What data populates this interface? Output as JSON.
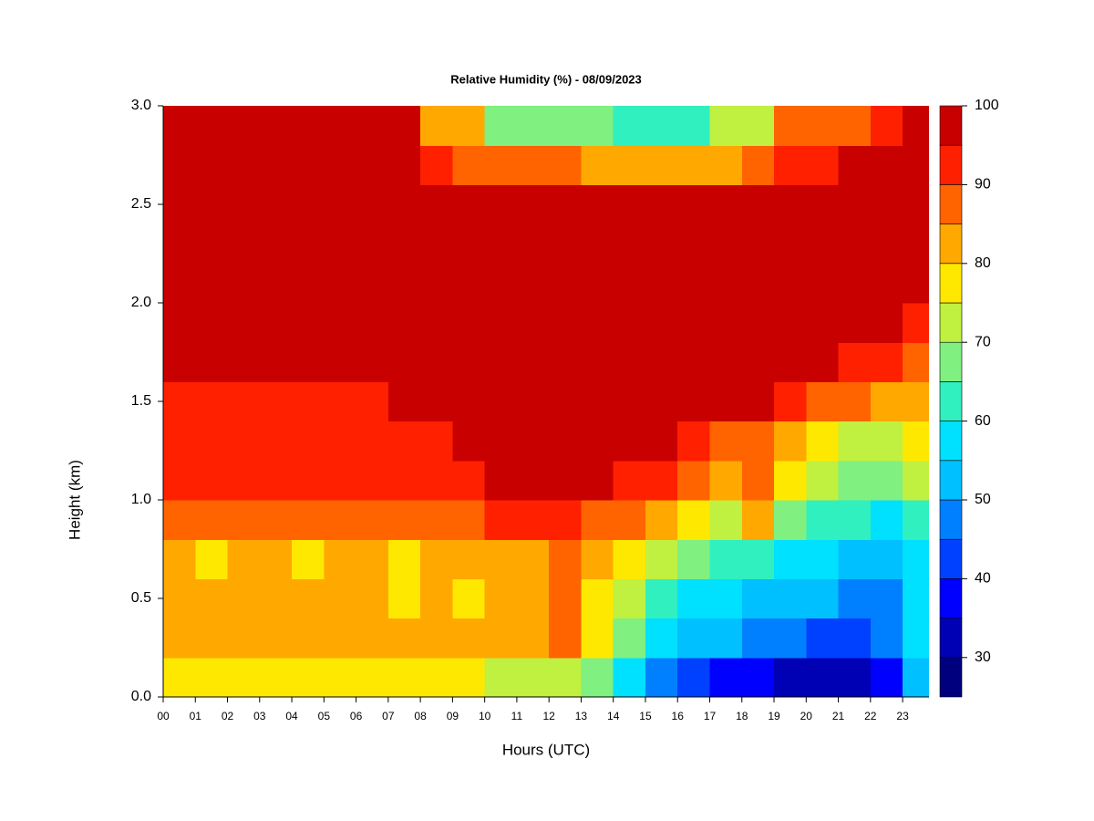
{
  "chart_data": {
    "type": "heatmap",
    "title": "Relative Humidity (%) - 08/09/2023",
    "x_label": "Hours (UTC)",
    "y_label": "Height (km)",
    "xlim": [
      0,
      23.82
    ],
    "ylim": [
      0,
      3
    ],
    "xticks": [
      {
        "value": 0,
        "label": "00"
      },
      {
        "value": 1,
        "label": "01"
      },
      {
        "value": 2,
        "label": "02"
      },
      {
        "value": 3,
        "label": "03"
      },
      {
        "value": 4,
        "label": "04"
      },
      {
        "value": 5,
        "label": "05"
      },
      {
        "value": 6,
        "label": "06"
      },
      {
        "value": 7,
        "label": "07"
      },
      {
        "value": 8,
        "label": "08"
      },
      {
        "value": 9,
        "label": "09"
      },
      10,
      11,
      12,
      13,
      14,
      15,
      16,
      17,
      18,
      19,
      20,
      21,
      22,
      23
    ],
    "yticks": [
      {
        "value": 0,
        "label": "0.0"
      },
      0.5,
      {
        "value": 1,
        "label": "1.0"
      },
      1.5,
      {
        "value": 2,
        "label": "2.0"
      },
      2.5,
      {
        "value": 3,
        "label": "3.0"
      }
    ],
    "x": [
      0.5,
      1.5,
      2.5,
      3.5,
      4.5,
      5.5,
      6.5,
      7.5,
      8.5,
      9.5,
      10.5,
      11.5,
      12.5,
      13.5,
      14.5,
      15.5,
      16.5,
      17.5,
      18.5,
      19.5,
      20.5,
      21.5,
      22.5,
      23.5
    ],
    "y": [
      0.1,
      0.3,
      0.5,
      0.7,
      0.9,
      1.1,
      1.3,
      1.5,
      1.7,
      1.9,
      2.1,
      2.3,
      2.5,
      2.7,
      2.9
    ],
    "z": [
      [
        76,
        77,
        76,
        76,
        75,
        76,
        77,
        76,
        75,
        76,
        74,
        72,
        70,
        65,
        55,
        45,
        40,
        37,
        36,
        33,
        32,
        32,
        35,
        50
      ],
      [
        83,
        84,
        83,
        83,
        84,
        83,
        83,
        82,
        83,
        82,
        82,
        82,
        85,
        75,
        65,
        57,
        52,
        50,
        48,
        46,
        44,
        43,
        45,
        55
      ],
      [
        82,
        80,
        81,
        80,
        81,
        82,
        80,
        79,
        80,
        79,
        83,
        83,
        87,
        78,
        70,
        62,
        57,
        55,
        54,
        52,
        50,
        48,
        48,
        55
      ],
      [
        80,
        79,
        80,
        80,
        79,
        80,
        81,
        79,
        80,
        80,
        84,
        84,
        86,
        80,
        75,
        70,
        65,
        60,
        62,
        57,
        55,
        52,
        52,
        57
      ],
      [
        87,
        86,
        87,
        88,
        87,
        86,
        87,
        86,
        87,
        87,
        90,
        93,
        93,
        88,
        85,
        80,
        77,
        72,
        80,
        68,
        62,
        60,
        58,
        62
      ],
      [
        91,
        91,
        92,
        91,
        92,
        91,
        91,
        92,
        91,
        92,
        95,
        98,
        98,
        98,
        93,
        90,
        86,
        82,
        88,
        75,
        70,
        68,
        67,
        70
      ],
      [
        92,
        92,
        93,
        92,
        93,
        93,
        92,
        93,
        94,
        96,
        98,
        98,
        98,
        98,
        98,
        95,
        92,
        88,
        85,
        80,
        76,
        74,
        74,
        75
      ],
      [
        93,
        93,
        93,
        93,
        94,
        94,
        94,
        96,
        96,
        98,
        98,
        98,
        98,
        98,
        98,
        98,
        98,
        97,
        95,
        92,
        88,
        85,
        82,
        80
      ],
      [
        96,
        96,
        96,
        97,
        96,
        97,
        97,
        98,
        98,
        98,
        98,
        98,
        98,
        98,
        98,
        98,
        98,
        98,
        98,
        98,
        97,
        93,
        90,
        87
      ],
      [
        98,
        98,
        98,
        98,
        98,
        98,
        98,
        98,
        98,
        98,
        98,
        98,
        98,
        98,
        98,
        98,
        98,
        98,
        98,
        98,
        98,
        98,
        95,
        92
      ],
      [
        98,
        98,
        98,
        98,
        98,
        98,
        98,
        98,
        98,
        98,
        98,
        98,
        98,
        98,
        98,
        98,
        98,
        98,
        98,
        98,
        98,
        98,
        98,
        98
      ],
      [
        98,
        98,
        98,
        98,
        98,
        98,
        98,
        98,
        98,
        98,
        98,
        98,
        98,
        98,
        98,
        98,
        98,
        98,
        98,
        98,
        98,
        98,
        98,
        98
      ],
      [
        98,
        98,
        98,
        98,
        98,
        98,
        98,
        98,
        98,
        98,
        98,
        98,
        98,
        98,
        98,
        98,
        98,
        98,
        98,
        98,
        98,
        98,
        98,
        98
      ],
      [
        98,
        98,
        98,
        98,
        98,
        98,
        98,
        98,
        90,
        85,
        85,
        85,
        85,
        80,
        80,
        80,
        80,
        80,
        85,
        93,
        93,
        98,
        98,
        98
      ],
      [
        97,
        97,
        97,
        97,
        97,
        97,
        97,
        95,
        80,
        80,
        65,
        65,
        65,
        65,
        60,
        60,
        60,
        70,
        70,
        85,
        85,
        85,
        92,
        97
      ]
    ],
    "levels": [
      25,
      30,
      35,
      40,
      45,
      50,
      55,
      60,
      65,
      70,
      75,
      80,
      85,
      90,
      95,
      100
    ],
    "colors": [
      "#00007f",
      "#0000b4",
      "#0000ff",
      "#0040ff",
      "#0080ff",
      "#00c0ff",
      "#00e0ff",
      "#30f0c0",
      "#80f080",
      "#c0f040",
      "#ffe800",
      "#ffa800",
      "#ff6400",
      "#ff2000",
      "#c80000",
      "#800000"
    ],
    "zlim": [
      25,
      100
    ],
    "zticks": [
      30,
      40,
      50,
      60,
      70,
      80,
      90,
      100
    ]
  }
}
